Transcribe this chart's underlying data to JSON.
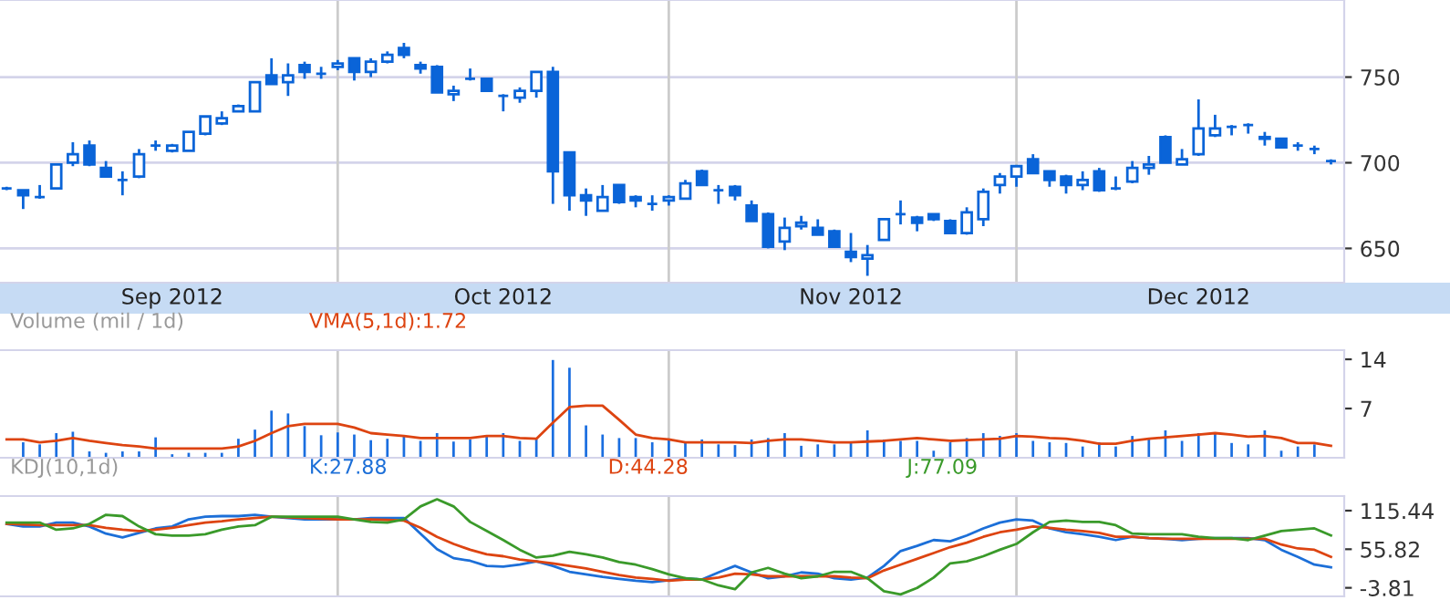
{
  "chart_data": [
    {
      "type": "candlestick",
      "color": "#0a64d8",
      "categories": [
        null,
        null,
        null,
        null,
        null,
        null,
        null,
        null,
        null,
        null,
        "Sep 2012",
        null,
        null,
        null,
        null,
        null,
        null,
        null,
        null,
        null,
        null,
        null,
        null,
        null,
        null,
        null,
        null,
        null,
        null,
        null,
        "Oct 2012",
        null,
        null,
        null,
        null,
        null,
        null,
        null,
        null,
        null,
        null,
        null,
        null,
        null,
        null,
        null,
        null,
        null,
        null,
        null,
        null,
        "Nov 2012",
        null,
        null,
        null,
        null,
        null,
        null,
        null,
        null,
        null,
        null,
        null,
        null,
        null,
        null,
        null,
        null,
        null,
        null,
        null,
        null,
        "Dec 2012",
        null,
        null,
        null,
        null,
        null,
        null,
        null,
        null
      ],
      "ohlc": [
        [
          685,
          686,
          684,
          685
        ],
        [
          684,
          684,
          673,
          681
        ],
        [
          680,
          687,
          679,
          680
        ],
        [
          685,
          699,
          685,
          699
        ],
        [
          700,
          712,
          698,
          705
        ],
        [
          710,
          713,
          698,
          699
        ],
        [
          697,
          701,
          692,
          692
        ],
        [
          690,
          695,
          681,
          690
        ],
        [
          692,
          708,
          691,
          705
        ],
        [
          710,
          713,
          707,
          710
        ],
        [
          707,
          711,
          706,
          710
        ],
        [
          707,
          718,
          707,
          718
        ],
        [
          717,
          727,
          716,
          727
        ],
        [
          723,
          730,
          722,
          726
        ],
        [
          730,
          734,
          730,
          733
        ],
        [
          730,
          747,
          730,
          747
        ],
        [
          751,
          761,
          746,
          746
        ],
        [
          747,
          758,
          739,
          751
        ],
        [
          757,
          759,
          749,
          753
        ],
        [
          752,
          756,
          749,
          752
        ],
        [
          756,
          760,
          754,
          758
        ],
        [
          761,
          761,
          748,
          753
        ],
        [
          753,
          761,
          750,
          759
        ],
        [
          759,
          765,
          758,
          763
        ],
        [
          767,
          770,
          761,
          763
        ],
        [
          757,
          759,
          752,
          755
        ],
        [
          756,
          757,
          741,
          741
        ],
        [
          740,
          745,
          736,
          742
        ],
        [
          749,
          755,
          748,
          749
        ],
        [
          749,
          749,
          742,
          742
        ],
        [
          739,
          740,
          730,
          739
        ],
        [
          738,
          744,
          735,
          742
        ],
        [
          742,
          753,
          738,
          753
        ],
        [
          753,
          756,
          676,
          695
        ],
        [
          706,
          706,
          672,
          681
        ],
        [
          681,
          685,
          669,
          678
        ],
        [
          672,
          687,
          672,
          680
        ],
        [
          687,
          687,
          676,
          677
        ],
        [
          680,
          681,
          674,
          678
        ],
        [
          676,
          681,
          672,
          676
        ],
        [
          678,
          681,
          675,
          680
        ],
        [
          679,
          690,
          679,
          688
        ],
        [
          695,
          696,
          687,
          687
        ],
        [
          684,
          687,
          676,
          684
        ],
        [
          686,
          687,
          678,
          681
        ],
        [
          675,
          678,
          666,
          666
        ],
        [
          670,
          671,
          650,
          651
        ],
        [
          654,
          668,
          649,
          662
        ],
        [
          663,
          669,
          661,
          665
        ],
        [
          662,
          667,
          658,
          658
        ],
        [
          660,
          661,
          651,
          651
        ],
        [
          648,
          659,
          642,
          645
        ],
        [
          644,
          652,
          634,
          646
        ],
        [
          655,
          667,
          655,
          667
        ],
        [
          670,
          678,
          664,
          670
        ],
        [
          668,
          669,
          660,
          665
        ],
        [
          670,
          670,
          666,
          667
        ],
        [
          666,
          667,
          659,
          659
        ],
        [
          659,
          674,
          658,
          671
        ],
        [
          667,
          685,
          663,
          683
        ],
        [
          687,
          694,
          682,
          692
        ],
        [
          692,
          698,
          686,
          698
        ],
        [
          702,
          705,
          694,
          694
        ],
        [
          695,
          695,
          686,
          690
        ],
        [
          692,
          693,
          682,
          687
        ],
        [
          687,
          695,
          684,
          690
        ],
        [
          695,
          697,
          683,
          684
        ],
        [
          685,
          692,
          684,
          685
        ],
        [
          689,
          701,
          688,
          697
        ],
        [
          697,
          704,
          693,
          699
        ],
        [
          715,
          716,
          700,
          700
        ],
        [
          699,
          708,
          699,
          702
        ],
        [
          705,
          737,
          704,
          720
        ],
        [
          716,
          728,
          715,
          720
        ],
        [
          721,
          722,
          716,
          721
        ],
        [
          722,
          723,
          717,
          722
        ],
        [
          715,
          718,
          710,
          714
        ],
        [
          714,
          714,
          709,
          709
        ],
        [
          710,
          712,
          707,
          710
        ],
        [
          708,
          710,
          705,
          708
        ],
        [
          701,
          702,
          699,
          701
        ]
      ],
      "ylim": [
        630,
        795
      ],
      "yticks": [
        650,
        700,
        750
      ],
      "grid": "y"
    },
    {
      "type": "bar",
      "title": "Volume (mil / 1d)",
      "categories": [
        null,
        null,
        null,
        null,
        null,
        null,
        null,
        null,
        null,
        null,
        null,
        null,
        null,
        null,
        null,
        null,
        null,
        null,
        null,
        null,
        null,
        null,
        null,
        null,
        null,
        null,
        null,
        null,
        null,
        null,
        null,
        null,
        null,
        null,
        null,
        null,
        null,
        null,
        null,
        null,
        null,
        null,
        null,
        null,
        null,
        null,
        null,
        null,
        null,
        null,
        null,
        null,
        null,
        null,
        null,
        null,
        null,
        null,
        null,
        null,
        null,
        null,
        null,
        null,
        null,
        null,
        null,
        null,
        null,
        null,
        null,
        null,
        null,
        null,
        null,
        null,
        null,
        null,
        null,
        null,
        null
      ],
      "series": [
        {
          "type": "bar",
          "color": "#1a6ee0",
          "values": [
            null,
            2.2,
            1.9,
            3.5,
            3.7,
            0.9,
            0.7,
            0.9,
            0.9,
            2.9,
            0.5,
            0.7,
            0.7,
            0.7,
            2.7,
            4.0,
            6.7,
            6.3,
            4.5,
            3.2,
            3.6,
            3.3,
            2.5,
            2.7,
            3.1,
            2.4,
            3.5,
            2.3,
            2.6,
            3.1,
            3.5,
            2.4,
            2.6,
            13.9,
            12.8,
            4.6,
            3.3,
            2.8,
            2.8,
            2.2,
            2.7,
            2.2,
            2.6,
            1.9,
            1.8,
            2.6,
            2.8,
            3.5,
            1.7,
            1.9,
            1.9,
            2.2,
            3.9,
            2.6,
            2.4,
            2.4,
            1.0,
            2.2,
            2.8,
            3.5,
            3.1,
            3.5,
            2.4,
            2.2,
            2.1,
            1.6,
            2.2,
            1.6,
            3.1,
            2.8,
            3.9,
            2.4,
            3.5,
            3.5,
            2.1,
            1.9,
            3.9,
            1.0,
            1.6,
            1.9,
            null
          ]
        },
        {
          "type": "line",
          "name": "VMA(5,1d):1.72",
          "color": "#dd4411",
          "values": [
            2.6,
            2.6,
            2.2,
            2.4,
            2.8,
            2.4,
            2.1,
            1.8,
            1.6,
            1.3,
            1.3,
            1.3,
            1.3,
            1.3,
            1.6,
            2.4,
            3.5,
            4.5,
            4.8,
            4.8,
            4.8,
            4.3,
            3.5,
            3.3,
            3.1,
            2.8,
            2.8,
            2.8,
            2.8,
            3.1,
            3.1,
            2.8,
            2.7,
            5.0,
            7.2,
            7.4,
            7.4,
            5.4,
            3.3,
            2.8,
            2.6,
            2.2,
            2.2,
            2.2,
            2.2,
            2.1,
            2.4,
            2.6,
            2.6,
            2.4,
            2.2,
            2.2,
            2.3,
            2.4,
            2.6,
            2.8,
            2.6,
            2.4,
            2.5,
            2.6,
            2.7,
            3.1,
            3.0,
            2.8,
            2.7,
            2.4,
            2.0,
            2.0,
            2.4,
            2.7,
            2.9,
            3.1,
            3.3,
            3.5,
            3.3,
            3.0,
            3.1,
            2.8,
            2.1,
            2.1,
            1.7
          ]
        }
      ],
      "ylim": [
        0,
        15.3
      ],
      "yticks": [
        7,
        14
      ],
      "tick_labels": "y"
    },
    {
      "type": "line",
      "title": "KDJ(10,1d)",
      "categories": [
        null,
        null,
        null,
        null,
        null,
        null,
        null,
        null,
        null,
        null,
        null,
        null,
        null,
        null,
        null,
        null,
        null,
        null,
        null,
        null,
        null,
        null,
        null,
        null,
        null,
        null,
        null,
        null,
        null,
        null,
        null,
        null,
        null,
        null,
        null,
        null,
        null,
        null,
        null,
        null,
        null,
        null,
        null,
        null,
        null,
        null,
        null,
        null,
        null,
        null,
        null,
        null,
        null,
        null,
        null,
        null,
        null,
        null,
        null,
        null,
        null,
        null,
        null,
        null,
        null,
        null,
        null,
        null,
        null,
        null,
        null,
        null,
        null,
        null,
        null,
        null,
        null,
        null,
        null,
        null,
        null
      ],
      "series": [
        {
          "name": "K:27.88",
          "color": "#1c6fd8",
          "values": [
            95,
            91,
            91,
            97,
            97,
            91,
            80,
            74,
            81,
            88,
            91,
            102,
            106,
            107,
            107,
            109,
            106,
            104,
            102,
            102,
            102,
            102,
            104,
            104,
            104,
            80,
            56,
            42,
            38,
            30,
            29,
            32,
            37,
            30,
            21,
            17,
            13,
            10,
            7,
            5,
            8,
            11,
            9,
            20,
            30,
            20,
            11,
            14,
            20,
            18,
            11,
            9,
            12,
            30,
            53,
            61,
            70,
            68,
            77,
            88,
            97,
            102,
            100,
            88,
            82,
            79,
            75,
            70,
            75,
            73,
            72,
            70,
            72,
            73,
            73,
            73,
            70,
            55,
            44,
            32,
            28
          ]
        },
        {
          "name": "D:44.28",
          "color": "#dd4411",
          "values": [
            95,
            94,
            93,
            93,
            93,
            93,
            89,
            86,
            84,
            86,
            89,
            93,
            97,
            99,
            102,
            104,
            106,
            105,
            104,
            103,
            102,
            102,
            102,
            101,
            100,
            89,
            75,
            64,
            55,
            48,
            45,
            40,
            37,
            34,
            30,
            26,
            21,
            16,
            12,
            10,
            7,
            9,
            9,
            12,
            18,
            17,
            14,
            14,
            14,
            14,
            14,
            12,
            11,
            23,
            32,
            41,
            50,
            59,
            66,
            75,
            82,
            86,
            91,
            89,
            86,
            84,
            81,
            75,
            75,
            73,
            72,
            72,
            72,
            72,
            72,
            72,
            72,
            63,
            57,
            55,
            44
          ]
        },
        {
          "name": "J:77.09",
          "color": "#3a9a2a",
          "values": [
            97,
            97,
            97,
            86,
            88,
            95,
            109,
            107,
            91,
            79,
            77,
            77,
            79,
            86,
            91,
            93,
            106,
            106,
            106,
            106,
            106,
            102,
            98,
            97,
            102,
            122,
            133,
            122,
            98,
            84,
            70,
            55,
            43,
            46,
            52,
            48,
            43,
            36,
            32,
            25,
            17,
            11,
            9,
            0,
            -6,
            20,
            27,
            18,
            11,
            14,
            21,
            21,
            11,
            -9,
            -14,
            -4,
            12,
            34,
            37,
            45,
            55,
            64,
            82,
            98,
            100,
            98,
            98,
            93,
            80,
            79,
            79,
            79,
            75,
            73,
            73,
            70,
            77,
            84,
            86,
            88,
            77
          ]
        }
      ],
      "ylim": [
        -17,
        138
      ],
      "yticks": [
        -3.81,
        55.82,
        115.44
      ],
      "tick_labels": "y"
    }
  ]
}
